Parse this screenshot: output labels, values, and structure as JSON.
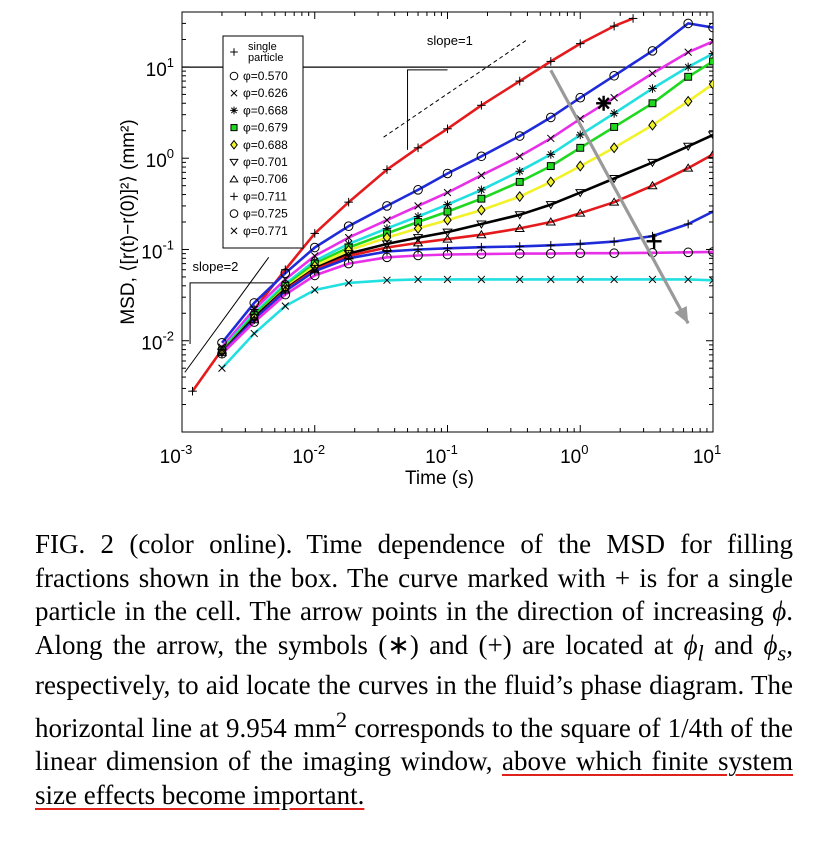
{
  "chart_data": {
    "type": "line",
    "xlabel": "Time (s)",
    "ylabel": "MSD, ⟨[r(t)−r(0)]²⟩ (mm²)",
    "xscale": "log",
    "yscale": "log",
    "xlim": [
      0.001,
      10
    ],
    "ylim": [
      0.001,
      40
    ],
    "x_ticks": [
      {
        "base": "10",
        "exp": "-3",
        "value": 0.001
      },
      {
        "base": "10",
        "exp": "-2",
        "value": 0.01
      },
      {
        "base": "10",
        "exp": "-1",
        "value": 0.1
      },
      {
        "base": "10",
        "exp": "0",
        "value": 1
      },
      {
        "base": "10",
        "exp": "1",
        "value": 10
      }
    ],
    "y_ticks": [
      {
        "base": "10",
        "exp": "-2",
        "value": 0.01
      },
      {
        "base": "10",
        "exp": "-1",
        "value": 0.1
      },
      {
        "base": "10",
        "exp": "0",
        "value": 1
      },
      {
        "base": "10",
        "exp": "1",
        "value": 10
      }
    ],
    "grid": false,
    "legend_position": "top-left",
    "horizontal_line": 9.954,
    "annotations": [
      {
        "text": "slope=1",
        "line": {
          "x": [
            0.033,
            0.4
          ],
          "y": [
            1.7,
            20
          ]
        }
      },
      {
        "text": "slope=2",
        "line": {
          "x": [
            0.00105,
            0.0045
          ],
          "y": [
            0.0045,
            0.082
          ]
        }
      }
    ],
    "series": [
      {
        "name": "single particle",
        "color": "#e41a1c",
        "marker": "+",
        "x": [
          0.0012,
          0.002,
          0.0035,
          0.006,
          0.01,
          0.018,
          0.035,
          0.06,
          0.1,
          0.18,
          0.35,
          0.6,
          1.0,
          1.8,
          2.5
        ],
        "y": [
          0.0028,
          0.008,
          0.022,
          0.06,
          0.15,
          0.33,
          0.75,
          1.3,
          2.1,
          3.8,
          7.0,
          11.5,
          18,
          28,
          34
        ]
      },
      {
        "name": "φ=0.570",
        "color": "#1f2bd8",
        "marker": "o",
        "x": [
          0.002,
          0.0035,
          0.006,
          0.01,
          0.018,
          0.035,
          0.06,
          0.1,
          0.18,
          0.35,
          0.6,
          1.0,
          1.8,
          3.5,
          6.5,
          10
        ],
        "y": [
          0.0095,
          0.026,
          0.055,
          0.105,
          0.18,
          0.3,
          0.45,
          0.68,
          1.05,
          1.75,
          2.8,
          4.6,
          8.0,
          15,
          30,
          27
        ]
      },
      {
        "name": "φ=0.626",
        "color": "#e830e8",
        "marker": "x",
        "x": [
          0.002,
          0.0035,
          0.006,
          0.01,
          0.018,
          0.035,
          0.06,
          0.1,
          0.18,
          0.35,
          0.6,
          1.0,
          1.8,
          3.5,
          6.5,
          10
        ],
        "y": [
          0.0085,
          0.022,
          0.047,
          0.085,
          0.135,
          0.21,
          0.3,
          0.42,
          0.65,
          1.05,
          1.65,
          2.7,
          4.6,
          8.5,
          14.5,
          19
        ]
      },
      {
        "name": "φ=0.668",
        "color": "#22dfe0",
        "marker": "*",
        "x": [
          0.002,
          0.0035,
          0.006,
          0.01,
          0.018,
          0.035,
          0.06,
          0.1,
          0.18,
          0.35,
          0.6,
          1.0,
          1.8,
          3.5,
          6.5,
          10
        ],
        "y": [
          0.008,
          0.02,
          0.042,
          0.075,
          0.115,
          0.17,
          0.23,
          0.31,
          0.45,
          0.72,
          1.1,
          1.8,
          3.1,
          5.8,
          10,
          14
        ]
      },
      {
        "name": "φ=0.679",
        "color": "#1fd81f",
        "marker": "s",
        "x": [
          0.002,
          0.0035,
          0.006,
          0.01,
          0.018,
          0.035,
          0.06,
          0.1,
          0.18,
          0.35,
          0.6,
          1.0,
          1.8,
          3.5,
          6.5,
          10
        ],
        "y": [
          0.0078,
          0.019,
          0.04,
          0.07,
          0.105,
          0.15,
          0.2,
          0.26,
          0.36,
          0.55,
          0.82,
          1.3,
          2.2,
          4.0,
          7.8,
          11.5
        ]
      },
      {
        "name": "φ=0.688",
        "color": "#f2f22a",
        "marker": "d",
        "x": [
          0.002,
          0.0035,
          0.006,
          0.01,
          0.018,
          0.035,
          0.06,
          0.1,
          0.18,
          0.35,
          0.6,
          1.0,
          1.8,
          3.5,
          6.5,
          10
        ],
        "y": [
          0.0076,
          0.018,
          0.038,
          0.066,
          0.098,
          0.135,
          0.17,
          0.21,
          0.27,
          0.38,
          0.55,
          0.82,
          1.3,
          2.3,
          4.2,
          6.5
        ]
      },
      {
        "name": "φ=0.701",
        "color": "#000000",
        "marker": "v",
        "x": [
          0.002,
          0.0035,
          0.006,
          0.01,
          0.018,
          0.035,
          0.06,
          0.1,
          0.18,
          0.35,
          0.6,
          1.0,
          1.8,
          3.5,
          6.5,
          10
        ],
        "y": [
          0.0075,
          0.018,
          0.037,
          0.062,
          0.09,
          0.115,
          0.135,
          0.155,
          0.19,
          0.24,
          0.31,
          0.42,
          0.6,
          0.9,
          1.35,
          1.8
        ]
      },
      {
        "name": "φ=0.706",
        "color": "#e41a1c",
        "marker": "^",
        "x": [
          0.002,
          0.0035,
          0.006,
          0.01,
          0.018,
          0.035,
          0.06,
          0.1,
          0.18,
          0.35,
          0.6,
          1.0,
          1.8,
          3.5,
          6.5,
          10
        ],
        "y": [
          0.0074,
          0.017,
          0.036,
          0.06,
          0.085,
          0.105,
          0.118,
          0.13,
          0.145,
          0.17,
          0.2,
          0.25,
          0.33,
          0.5,
          0.78,
          1.1
        ]
      },
      {
        "name": "φ=0.711",
        "color": "#1f2bd8",
        "marker": "+",
        "x": [
          0.002,
          0.0035,
          0.006,
          0.01,
          0.018,
          0.035,
          0.06,
          0.1,
          0.18,
          0.35,
          0.6,
          1.0,
          1.8,
          3.5,
          6.5,
          10
        ],
        "y": [
          0.0073,
          0.017,
          0.035,
          0.058,
          0.08,
          0.095,
          0.1,
          0.103,
          0.106,
          0.108,
          0.111,
          0.115,
          0.122,
          0.14,
          0.19,
          0.26
        ]
      },
      {
        "name": "φ=0.725",
        "color": "#e830e8",
        "marker": "o",
        "x": [
          0.002,
          0.0035,
          0.006,
          0.01,
          0.018,
          0.035,
          0.06,
          0.1,
          0.18,
          0.35,
          0.6,
          1.0,
          1.8,
          3.5,
          6.5,
          10
        ],
        "y": [
          0.0072,
          0.016,
          0.032,
          0.052,
          0.07,
          0.082,
          0.086,
          0.088,
          0.089,
          0.09,
          0.09,
          0.091,
          0.091,
          0.092,
          0.093,
          0.094
        ]
      },
      {
        "name": "φ=0.771",
        "color": "#22dfe0",
        "marker": "x",
        "x": [
          0.002,
          0.0035,
          0.006,
          0.01,
          0.018,
          0.035,
          0.06,
          0.1,
          0.18,
          0.35,
          0.6,
          1.0,
          1.8,
          3.5,
          6.5,
          10
        ],
        "y": [
          0.005,
          0.012,
          0.024,
          0.036,
          0.043,
          0.046,
          0.047,
          0.047,
          0.047,
          0.047,
          0.047,
          0.047,
          0.047,
          0.047,
          0.047,
          0.046
        ]
      }
    ],
    "arrow": {
      "from": {
        "x": 0.6,
        "y": 9.2
      },
      "to": {
        "x": 6.5,
        "y": 0.0155
      },
      "color": "#9a9a9a"
    },
    "phase_markers": [
      {
        "label": "φ_l",
        "symbol": "*",
        "x": 1.5,
        "y": 4.0
      },
      {
        "label": "φ_s",
        "symbol": "+",
        "x": 3.6,
        "y": 0.123
      }
    ]
  },
  "caption": {
    "label": "FIG. 2 (color online).",
    "text": {
      "t1": "Time dependence of the MSD for filling fractions shown in the box. The curve marked with + is for a single particle in the cell. The arrow points in the direction of increasing ",
      "phi": "ϕ",
      "t2": ". Along the arrow, the symbols (∗) and (+) are located at ",
      "phil_base": "ϕ",
      "phil_sub": "l",
      "t3": " and ",
      "phis_base": "ϕ",
      "phis_sub": "s",
      "t4": ", respectively, to aid locate the curves in the fluid’s phase diagram. The horizontal line at 9.954 mm",
      "sup": "2",
      "t5": " corresponds to the square of 1/4th of the linear dimension of the imaging window, ",
      "highlight": "above which finite system size effects become important."
    }
  }
}
